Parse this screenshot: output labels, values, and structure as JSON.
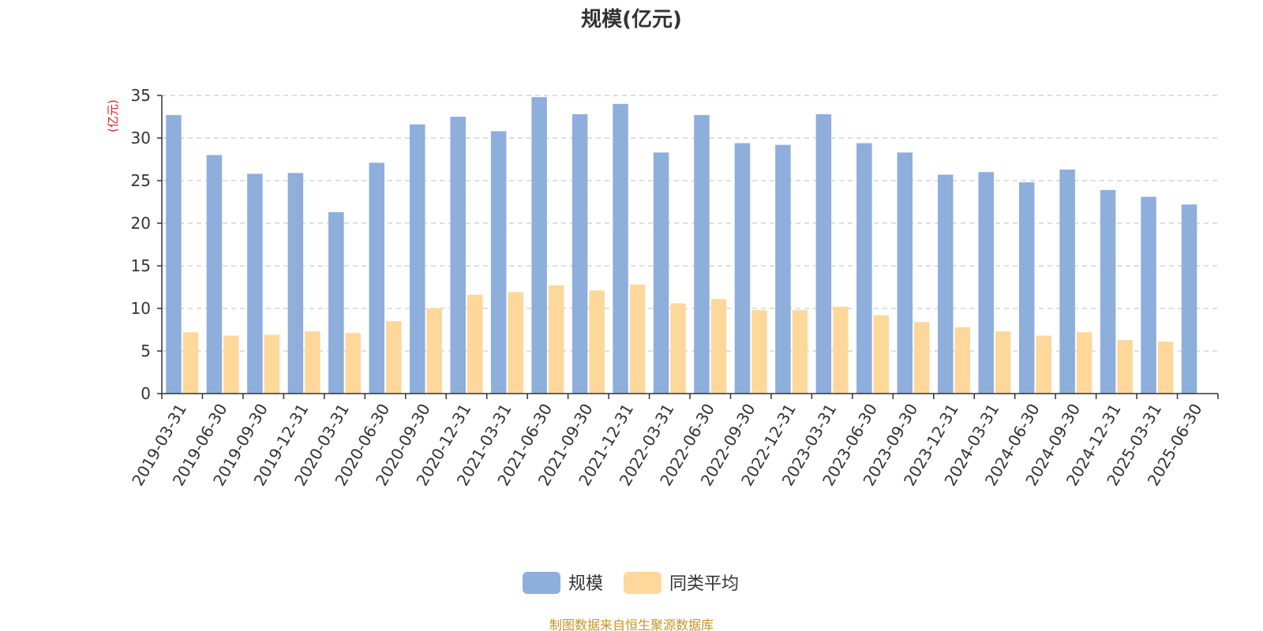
{
  "chart_data": {
    "type": "bar",
    "title": "规模(亿元)",
    "ylabel": "(亿元)",
    "xlabel": "",
    "ylim": [
      0,
      35
    ],
    "yticks": [
      0,
      5,
      10,
      15,
      20,
      25,
      30,
      35
    ],
    "grid": true,
    "legend_position": "bottom-center",
    "categories": [
      "2019-03-31",
      "2019-06-30",
      "2019-09-30",
      "2019-12-31",
      "2020-03-31",
      "2020-06-30",
      "2020-09-30",
      "2020-12-31",
      "2021-03-31",
      "2021-06-30",
      "2021-09-30",
      "2021-12-31",
      "2022-03-31",
      "2022-06-30",
      "2022-09-30",
      "2022-12-31",
      "2023-03-31",
      "2023-06-30",
      "2023-09-30",
      "2023-12-31",
      "2024-03-31",
      "2024-06-30",
      "2024-09-30",
      "2024-12-31",
      "2025-03-31",
      "2025-06-30"
    ],
    "series": [
      {
        "name": "规模",
        "color": "#8eaedb",
        "values": [
          32.7,
          28.0,
          25.8,
          25.9,
          21.3,
          27.1,
          31.6,
          32.5,
          30.8,
          34.8,
          32.8,
          34.0,
          28.3,
          32.7,
          29.4,
          29.2,
          32.8,
          29.4,
          28.3,
          25.7,
          26.0,
          24.8,
          26.3,
          23.9,
          23.1,
          22.2
        ]
      },
      {
        "name": "同类平均",
        "color": "#fdd89a",
        "values": [
          7.2,
          6.8,
          6.9,
          7.3,
          7.1,
          8.5,
          10.0,
          11.6,
          11.9,
          12.7,
          12.1,
          12.8,
          10.6,
          11.1,
          9.8,
          9.8,
          10.2,
          9.2,
          8.4,
          7.8,
          7.3,
          6.8,
          7.2,
          6.3,
          6.1,
          null
        ]
      }
    ]
  },
  "footer": {
    "source": "制图数据来自恒生聚源数据库",
    "source_color": "#c8951e"
  },
  "colors": {
    "ylabel": "#e02020",
    "axis": "#333333",
    "grid": "#cccccc"
  }
}
